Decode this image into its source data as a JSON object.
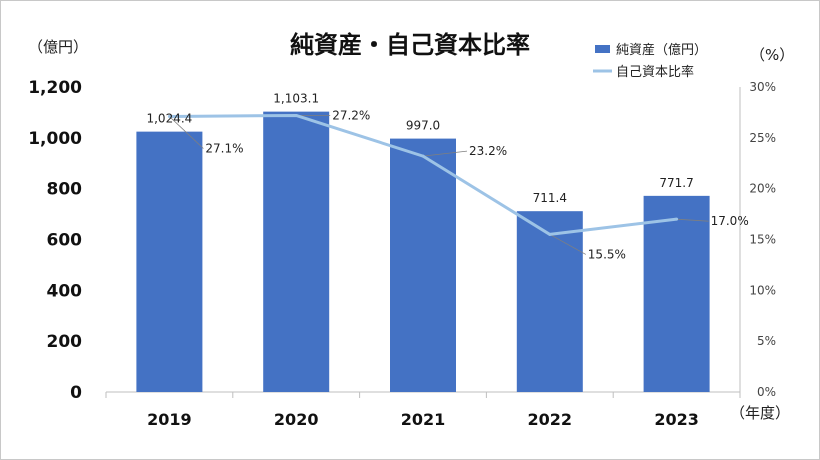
{
  "chart_data": {
    "type": "bar",
    "title": "純資産・自己資本比率",
    "categories": [
      "2019",
      "2020",
      "2021",
      "2022",
      "2023"
    ],
    "series": [
      {
        "name": "純資産（億円）",
        "type": "bar",
        "axis": "left",
        "values": [
          1024.4,
          1103.1,
          997.0,
          711.4,
          771.7
        ],
        "labels": [
          "1,024.4",
          "1,103.1",
          "997.0",
          "711.4",
          "771.7"
        ],
        "color": "#4472c4"
      },
      {
        "name": "自己資本比率",
        "type": "line",
        "axis": "right",
        "values": [
          27.1,
          27.2,
          23.2,
          15.5,
          17.0
        ],
        "labels": [
          "27.1%",
          "27.2%",
          "23.2%",
          "15.5%",
          "17.0%"
        ],
        "color": "#9dc3e6"
      }
    ],
    "y_left": {
      "unit": "（億円）",
      "ylim": [
        0,
        1200
      ],
      "ticks": [
        0,
        200,
        400,
        600,
        800,
        1000,
        1200
      ],
      "tick_labels": [
        "0",
        "200",
        "400",
        "600",
        "800",
        "1,000",
        "1,200"
      ]
    },
    "y_right": {
      "unit": "（%）",
      "ylim": [
        0,
        30
      ],
      "ticks": [
        0,
        5,
        10,
        15,
        20,
        25,
        30
      ],
      "tick_labels": [
        "0%",
        "5%",
        "10%",
        "15%",
        "20%",
        "25%",
        "30%"
      ]
    },
    "x_unit": "（年度）",
    "legend_placement": "top-right",
    "grid": false
  }
}
